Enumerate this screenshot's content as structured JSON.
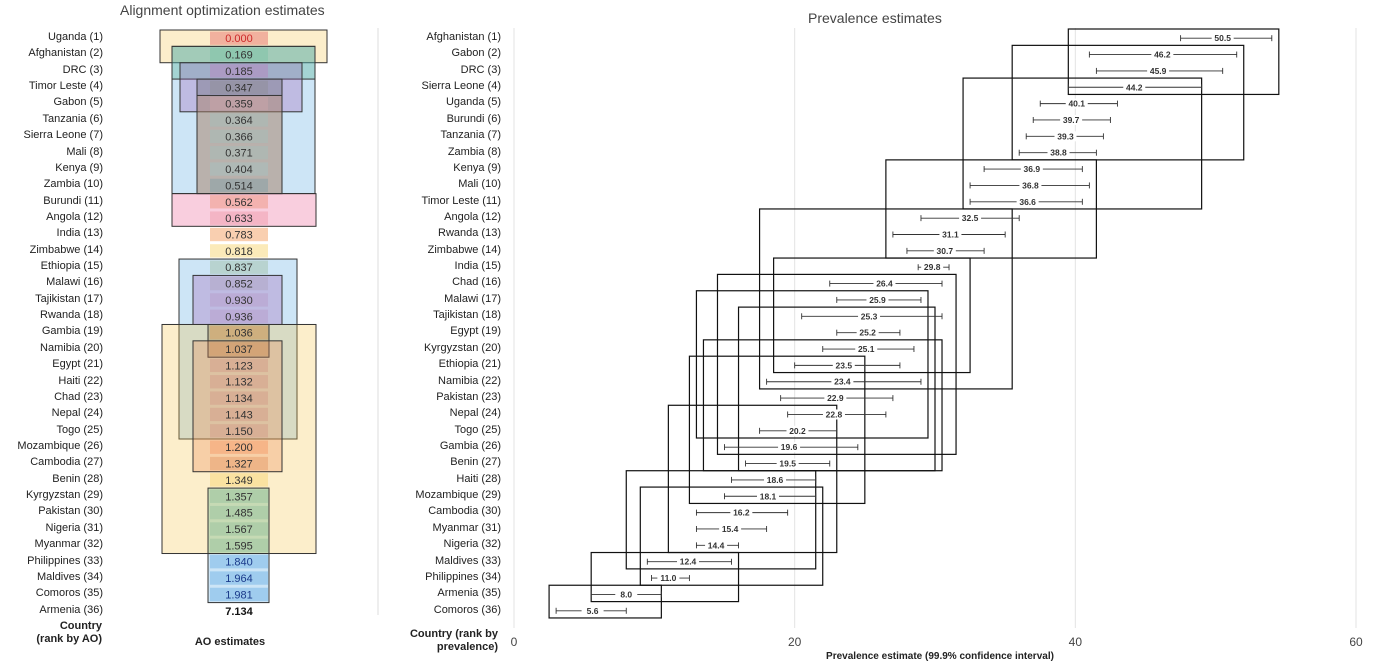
{
  "chart_data": [
    {
      "type": "table",
      "title": "Alignment optimization estimates",
      "row_header": "Country (rank by AO)",
      "column_header": "AO estimates",
      "rows": [
        {
          "label": "Uganda (1)",
          "value": "0.000"
        },
        {
          "label": "Afghanistan (2)",
          "value": "0.169"
        },
        {
          "label": "DRC (3)",
          "value": "0.185"
        },
        {
          "label": "Timor Leste (4)",
          "value": "0.347"
        },
        {
          "label": "Gabon (5)",
          "value": "0.359"
        },
        {
          "label": "Tanzania (6)",
          "value": "0.364"
        },
        {
          "label": "Sierra Leone (7)",
          "value": "0.366"
        },
        {
          "label": "Mali (8)",
          "value": "0.371"
        },
        {
          "label": "Kenya (9)",
          "value": "0.404"
        },
        {
          "label": "Zambia (10)",
          "value": "0.514"
        },
        {
          "label": "Burundi (11)",
          "value": "0.562"
        },
        {
          "label": "Angola (12)",
          "value": "0.633"
        },
        {
          "label": "India (13)",
          "value": "0.783"
        },
        {
          "label": "Zimbabwe (14)",
          "value": "0.818"
        },
        {
          "label": "Ethiopia (15)",
          "value": "0.837"
        },
        {
          "label": "Malawi (16)",
          "value": "0.852"
        },
        {
          "label": "Tajikistan (17)",
          "value": "0.930"
        },
        {
          "label": "Rwanda (18)",
          "value": "0.936"
        },
        {
          "label": "Gambia (19)",
          "value": "1.036"
        },
        {
          "label": "Namibia (20)",
          "value": "1.037"
        },
        {
          "label": "Egypt (21)",
          "value": "1.123"
        },
        {
          "label": "Haiti (22)",
          "value": "1.132"
        },
        {
          "label": "Chad (23)",
          "value": "1.134"
        },
        {
          "label": "Nepal (24)",
          "value": "1.143"
        },
        {
          "label": "Togo (25)",
          "value": "1.150"
        },
        {
          "label": "Mozambique (26)",
          "value": "1.200"
        },
        {
          "label": "Cambodia (27)",
          "value": "1.327"
        },
        {
          "label": "Benin (28)",
          "value": "1.349"
        },
        {
          "label": "Kyrgyzstan (29)",
          "value": "1.357"
        },
        {
          "label": "Pakistan (30)",
          "value": "1.485"
        },
        {
          "label": "Nigeria (31)",
          "value": "1.567"
        },
        {
          "label": "Myanmar (32)",
          "value": "1.595"
        },
        {
          "label": "Philippines (33)",
          "value": "1.840"
        },
        {
          "label": "Maldives (34)",
          "value": "1.964"
        },
        {
          "label": "Comoros (35)",
          "value": "1.981"
        },
        {
          "label": "Armenia (36)",
          "value": "7.134"
        }
      ],
      "groupings": [
        {
          "rows": [
            1,
            2
          ],
          "color": "#f6c244"
        },
        {
          "rows": [
            2,
            10
          ],
          "color": "#4aa0e0"
        },
        {
          "rows": [
            2,
            3
          ],
          "color": "#3aaa7a"
        },
        {
          "rows": [
            3,
            5
          ],
          "color": "#9a50b0"
        },
        {
          "rows": [
            4,
            10
          ],
          "color": "#444444"
        },
        {
          "rows": [
            5,
            10
          ],
          "color": "#e8a070"
        },
        {
          "rows": [
            11,
            12
          ],
          "color": "#e8508a"
        },
        {
          "rows": [
            15,
            25
          ],
          "color": "#4aa0e0"
        },
        {
          "rows": [
            16,
            18
          ],
          "color": "#9a50b0"
        },
        {
          "rows": [
            19,
            32
          ],
          "color": "#f6c244"
        },
        {
          "rows": [
            19,
            20
          ],
          "color": "#8a6020"
        },
        {
          "rows": [
            20,
            27
          ],
          "color": "#e8804a"
        },
        {
          "rows": [
            29,
            32
          ],
          "color": "#3aaa7a"
        },
        {
          "rows": [
            33,
            35
          ],
          "color": "#4aa0e0"
        }
      ],
      "cell_colors": [
        "#e8807a",
        "#7fc4a8",
        "#b58ac0",
        "#90909a",
        "#c8a4a8",
        "#a8bcb8",
        "#a8bcb8",
        "#a8bcb8",
        "#a8c0c0",
        "#88a0a8",
        "#ee9a88",
        "#f0a0b0",
        "#f4a870",
        "#f8d880",
        "#a8c4b0",
        "#b0a8c4",
        "#b8a0cc",
        "#b8a0cc",
        "#d8a86c",
        "#d8a070",
        "#d4a08a",
        "#d4a08a",
        "#d4a08a",
        "#d4a08a",
        "#d4a08a",
        "#f6a070",
        "#e8a070",
        "#f8d880",
        "#9cc4a0",
        "#9cc4a0",
        "#9cc4a0",
        "#9cc4a0",
        "#7ab8e8",
        "#7ab8e8",
        "#7ab8e8",
        "#ffffff"
      ],
      "value_colors": [
        "#cc2a2a",
        "#333333",
        "#333333",
        "#333333",
        "#333333",
        "#333333",
        "#333333",
        "#333333",
        "#333333",
        "#333333",
        "#333333",
        "#333333",
        "#333333",
        "#333333",
        "#333333",
        "#333333",
        "#333333",
        "#333333",
        "#333333",
        "#333333",
        "#333333",
        "#333333",
        "#333333",
        "#333333",
        "#333333",
        "#333333",
        "#333333",
        "#333333",
        "#333333",
        "#333333",
        "#333333",
        "#333333",
        "#1a3a8a",
        "#1a3a8a",
        "#1a3a8a",
        "#111111"
      ]
    },
    {
      "type": "scatter",
      "title": "Prevalence estimates",
      "xlabel": "Prevalence estimate (99.9% confidence interval)",
      "ylabel": "Country (rank by prevalence)",
      "xlim": [
        0,
        60
      ],
      "xticks": [
        0,
        20,
        40,
        60
      ],
      "grid": true,
      "points": [
        {
          "label": "Afghanistan (1)",
          "value": 50.5,
          "low": 47.5,
          "high": 54.0
        },
        {
          "label": "Gabon (2)",
          "value": 46.2,
          "low": 41.0,
          "high": 51.5
        },
        {
          "label": "DRC (3)",
          "value": 45.9,
          "low": 41.5,
          "high": 50.5
        },
        {
          "label": "Sierra Leone (4)",
          "value": 44.2,
          "low": 39.5,
          "high": 49.0
        },
        {
          "label": "Uganda (5)",
          "value": 40.1,
          "low": 37.5,
          "high": 43.0
        },
        {
          "label": "Burundi (6)",
          "value": 39.7,
          "low": 37.0,
          "high": 42.5
        },
        {
          "label": "Tanzania (7)",
          "value": 39.3,
          "low": 36.5,
          "high": 42.0
        },
        {
          "label": "Zambia (8)",
          "value": 38.8,
          "low": 36.0,
          "high": 41.5
        },
        {
          "label": "Kenya (9)",
          "value": 36.9,
          "low": 33.5,
          "high": 40.5
        },
        {
          "label": "Mali (10)",
          "value": 36.8,
          "low": 32.5,
          "high": 41.0
        },
        {
          "label": "Timor Leste (11)",
          "value": 36.6,
          "low": 32.5,
          "high": 40.5
        },
        {
          "label": "Angola (12)",
          "value": 32.5,
          "low": 29.0,
          "high": 36.0
        },
        {
          "label": "Rwanda (13)",
          "value": 31.1,
          "low": 27.0,
          "high": 35.0
        },
        {
          "label": "Zimbabwe (14)",
          "value": 30.7,
          "low": 28.0,
          "high": 33.5
        },
        {
          "label": "India (15)",
          "value": 29.8,
          "low": 28.8,
          "high": 31.0
        },
        {
          "label": "Chad (16)",
          "value": 26.4,
          "low": 22.5,
          "high": 30.5
        },
        {
          "label": "Malawi (17)",
          "value": 25.9,
          "low": 23.0,
          "high": 29.0
        },
        {
          "label": "Tajikistan (18)",
          "value": 25.3,
          "low": 20.5,
          "high": 30.5
        },
        {
          "label": "Egypt (19)",
          "value": 25.2,
          "low": 23.0,
          "high": 27.5
        },
        {
          "label": "Kyrgyzstan (20)",
          "value": 25.1,
          "low": 22.0,
          "high": 28.5
        },
        {
          "label": "Ethiopia (21)",
          "value": 23.5,
          "low": 20.0,
          "high": 27.5
        },
        {
          "label": "Namibia (22)",
          "value": 23.4,
          "low": 18.0,
          "high": 29.0
        },
        {
          "label": "Pakistan (23)",
          "value": 22.9,
          "low": 19.0,
          "high": 27.0
        },
        {
          "label": "Nepal (24)",
          "value": 22.8,
          "low": 19.5,
          "high": 26.5
        },
        {
          "label": "Togo (25)",
          "value": 20.2,
          "low": 17.5,
          "high": 23.0
        },
        {
          "label": "Gambia (26)",
          "value": 19.6,
          "low": 15.0,
          "high": 24.5
        },
        {
          "label": "Benin (27)",
          "value": 19.5,
          "low": 16.5,
          "high": 22.5
        },
        {
          "label": "Haiti (28)",
          "value": 18.6,
          "low": 15.5,
          "high": 21.5
        },
        {
          "label": "Mozambique (29)",
          "value": 18.1,
          "low": 15.0,
          "high": 21.5
        },
        {
          "label": "Cambodia (30)",
          "value": 16.2,
          "low": 13.0,
          "high": 19.5
        },
        {
          "label": "Myanmar (31)",
          "value": 15.4,
          "low": 13.0,
          "high": 18.0
        },
        {
          "label": "Nigeria (32)",
          "value": 14.4,
          "low": 13.0,
          "high": 16.0
        },
        {
          "label": "Maldives (33)",
          "value": 12.4,
          "low": 9.5,
          "high": 15.5
        },
        {
          "label": "Philippines (34)",
          "value": 11.0,
          "low": 9.8,
          "high": 12.5
        },
        {
          "label": "Armenia (35)",
          "value": 8.0,
          "low": 5.5,
          "high": 10.5
        },
        {
          "label": "Comoros (36)",
          "value": 5.6,
          "low": 3.0,
          "high": 8.0
        }
      ],
      "boxes": [
        {
          "rows": [
            1,
            4
          ],
          "x": [
            39.5,
            54.5
          ]
        },
        {
          "rows": [
            2,
            8
          ],
          "x": [
            35.5,
            52.0
          ]
        },
        {
          "rows": [
            4,
            11
          ],
          "x": [
            32.0,
            49.0
          ]
        },
        {
          "rows": [
            9,
            14
          ],
          "x": [
            26.5,
            41.5
          ]
        },
        {
          "rows": [
            12,
            22
          ],
          "x": [
            17.5,
            35.5
          ]
        },
        {
          "rows": [
            15,
            21
          ],
          "x": [
            18.5,
            32.5
          ]
        },
        {
          "rows": [
            16,
            26
          ],
          "x": [
            14.5,
            31.5
          ]
        },
        {
          "rows": [
            17,
            25
          ],
          "x": [
            13.0,
            29.5
          ]
        },
        {
          "rows": [
            18,
            27
          ],
          "x": [
            16.0,
            30.0
          ]
        },
        {
          "rows": [
            20,
            27
          ],
          "x": [
            13.5,
            30.5
          ]
        },
        {
          "rows": [
            21,
            29
          ],
          "x": [
            12.5,
            25.0
          ]
        },
        {
          "rows": [
            24,
            32
          ],
          "x": [
            11.0,
            23.0
          ]
        },
        {
          "rows": [
            28,
            33
          ],
          "x": [
            8.0,
            21.5
          ]
        },
        {
          "rows": [
            29,
            34
          ],
          "x": [
            9.0,
            22.0
          ]
        },
        {
          "rows": [
            33,
            35
          ],
          "x": [
            5.5,
            16.0
          ]
        },
        {
          "rows": [
            35,
            36
          ],
          "x": [
            2.5,
            10.5
          ]
        }
      ]
    }
  ]
}
